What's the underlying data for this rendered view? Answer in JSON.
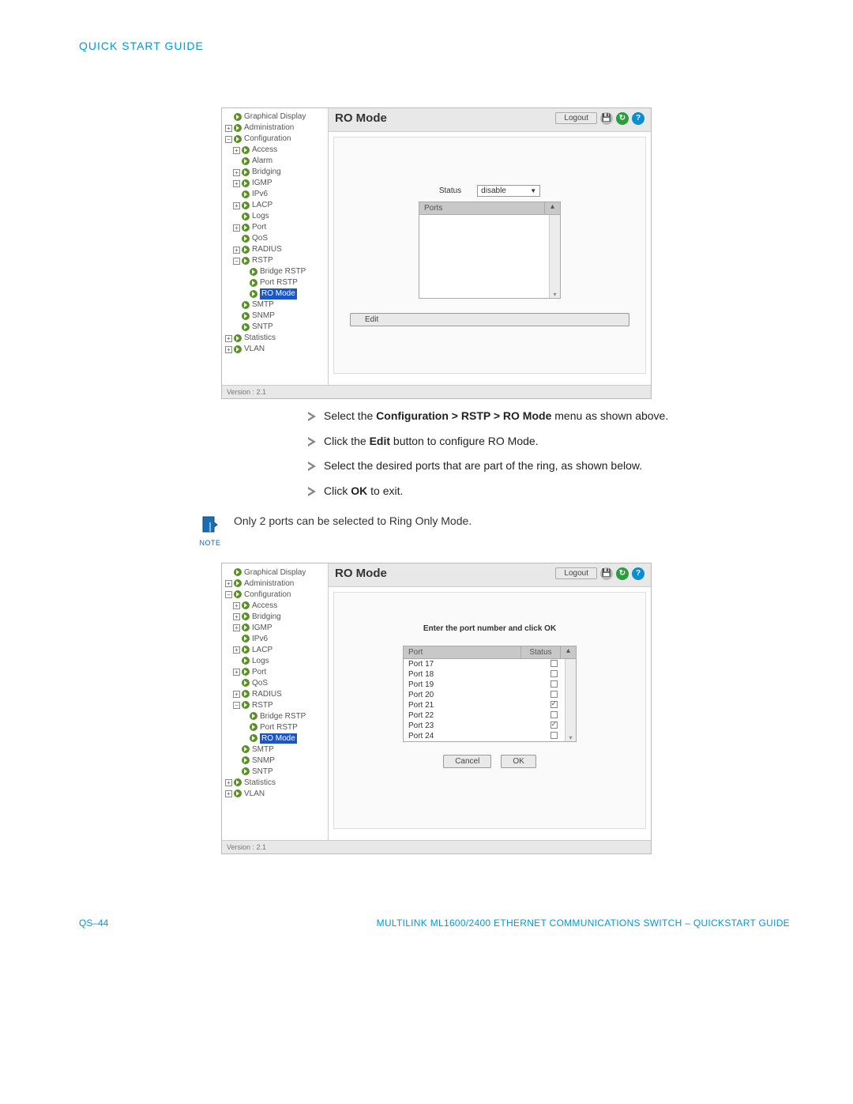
{
  "header": {
    "title": "QUICK START GUIDE"
  },
  "screenshot1": {
    "title": "RO Mode",
    "logout": "Logout",
    "status_label": "Status",
    "status_value": "disable",
    "ports_header": "Ports",
    "edit_label": "Edit",
    "version": "Version : 2.1",
    "tree": {
      "graphical": "Graphical Display",
      "admin": "Administration",
      "config": "Configuration",
      "access": "Access",
      "alarm": "Alarm",
      "bridging": "Bridging",
      "igmp": "IGMP",
      "ipv6": "IPv6",
      "lacp": "LACP",
      "logs": "Logs",
      "port": "Port",
      "qos": "QoS",
      "radius": "RADIUS",
      "rstp": "RSTP",
      "bridge_rstp": "Bridge RSTP",
      "port_rstp": "Port RSTP",
      "ro_mode": "RO Mode",
      "smtp": "SMTP",
      "snmp": "SNMP",
      "sntp": "SNTP",
      "statistics": "Statistics",
      "vlan": "VLAN"
    }
  },
  "instructions": {
    "i1a": "Select the ",
    "i1b": "Configuration > RSTP > RO Mode",
    "i1c": " menu as shown above.",
    "i2a": " Click the ",
    "i2b": "Edit",
    "i2c": " button to configure RO Mode.",
    "i3": "Select the desired ports that are part of the ring, as shown below.",
    "i4a": "Click ",
    "i4b": "OK",
    "i4c": " to exit."
  },
  "note": {
    "label": "NOTE",
    "text": "Only 2 ports can be selected to Ring Only Mode."
  },
  "screenshot2": {
    "title": "RO Mode",
    "logout": "Logout",
    "prompt": "Enter the port number and click OK",
    "port_header": "Port",
    "status_header": "Status",
    "cancel_label": "Cancel",
    "ok_label": "OK",
    "version": "Version : 2.1",
    "ports": [
      {
        "name": "Port 17",
        "checked": false
      },
      {
        "name": "Port 18",
        "checked": false
      },
      {
        "name": "Port 19",
        "checked": false
      },
      {
        "name": "Port 20",
        "checked": false
      },
      {
        "name": "Port 21",
        "checked": true
      },
      {
        "name": "Port 22",
        "checked": false
      },
      {
        "name": "Port 23",
        "checked": true
      },
      {
        "name": "Port 24",
        "checked": false
      }
    ],
    "tree": {
      "graphical": "Graphical Display",
      "admin": "Administration",
      "config": "Configuration",
      "access": "Access",
      "bridging": "Bridging",
      "igmp": "IGMP",
      "ipv6": "IPv6",
      "lacp": "LACP",
      "logs": "Logs",
      "port": "Port",
      "qos": "QoS",
      "radius": "RADIUS",
      "rstp": "RSTP",
      "bridge_rstp": "Bridge RSTP",
      "port_rstp": "Port RSTP",
      "ro_mode": "RO Mode",
      "smtp": "SMTP",
      "snmp": "SNMP",
      "sntp": "SNTP",
      "statistics": "Statistics",
      "vlan": "VLAN"
    }
  },
  "footer": {
    "left": "QS–44",
    "right": "MULTILINK ML1600/2400 ETHERNET COMMUNICATIONS SWITCH – QUICKSTART GUIDE"
  },
  "colors": {
    "brand": "#0099d8",
    "tree_icon": "#5a8f29",
    "selected_bg": "#1a56c4"
  }
}
